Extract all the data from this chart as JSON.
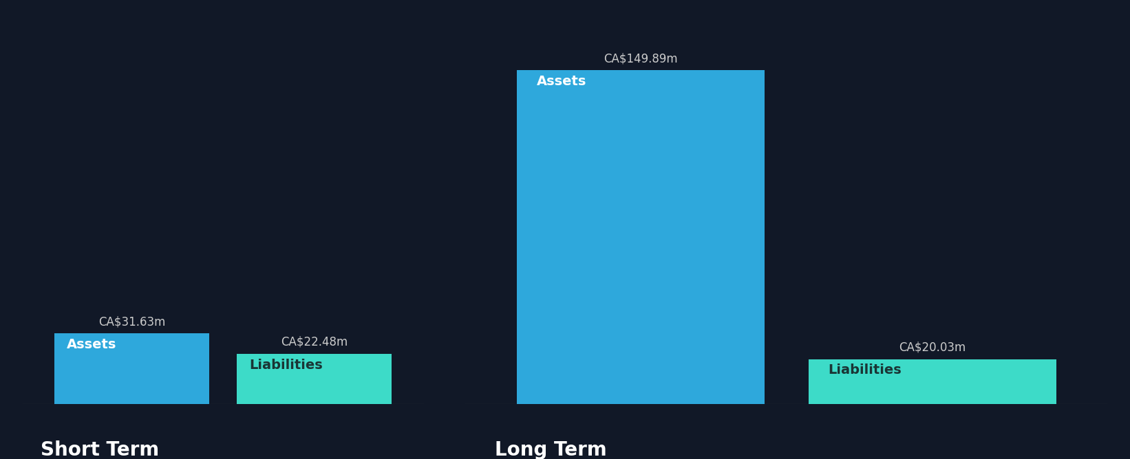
{
  "background_color": "#111827",
  "sections": [
    "Short Term",
    "Long Term"
  ],
  "categories": [
    "Assets",
    "Liabilities"
  ],
  "values": {
    "Short Term": {
      "Assets": 31.63,
      "Liabilities": 22.48
    },
    "Long Term": {
      "Assets": 149.89,
      "Liabilities": 20.03
    }
  },
  "colors": {
    "Assets": "#2EA8DC",
    "Liabilities": "#3DDBC8"
  },
  "label_color_assets": "#FFFFFF",
  "label_color_liabilities": "#1A3535",
  "value_label_color": "#CCCCCC",
  "section_label_color": "#FFFFFF",
  "section_label_fontsize": 20,
  "inner_label_fontsize": 14,
  "value_label_fontsize": 12,
  "ylim_short": 165,
  "ylim_long": 165,
  "bar_positions": [
    0,
    1
  ],
  "bar_width": 0.85
}
